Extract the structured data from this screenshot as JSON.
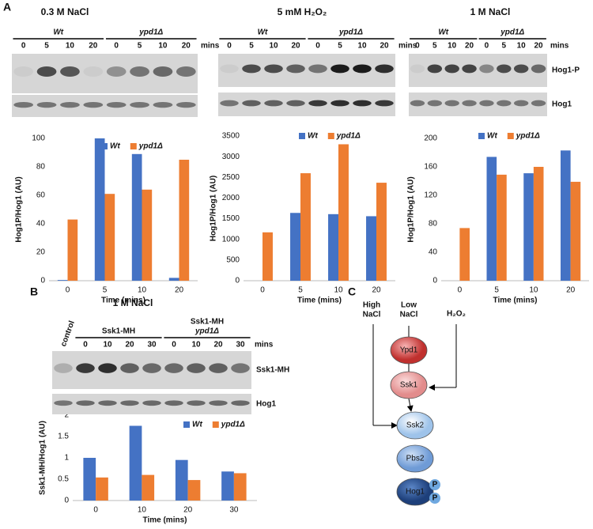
{
  "panel_labels": [
    "A",
    "B",
    "C"
  ],
  "chart_data": [
    {
      "type": "bar",
      "title": "0.3 M NaCl",
      "categories": [
        "0",
        "5",
        "10",
        "20"
      ],
      "series": [
        {
          "name": "Wt",
          "color": "#4472c4",
          "values": [
            0.5,
            100,
            89,
            2
          ]
        },
        {
          "name": "ypd1Δ",
          "color": "#ed7d31",
          "values": [
            43,
            61,
            64,
            85
          ]
        }
      ],
      "ylim": [
        0,
        100
      ],
      "yticks": [
        0,
        20,
        40,
        60,
        80,
        100
      ],
      "xlabel": "Time (mins)",
      "ylabel": "Hog1P/Hog1 (AU)"
    },
    {
      "type": "bar",
      "title": "5 mM H₂O₂",
      "categories": [
        "0",
        "5",
        "10",
        "20"
      ],
      "series": [
        {
          "name": "Wt",
          "color": "#4472c4",
          "values": [
            0,
            1640,
            1610,
            1560
          ]
        },
        {
          "name": "ypd1Δ",
          "color": "#ed7d31",
          "values": [
            1170,
            2600,
            3300,
            2370
          ]
        }
      ],
      "ylim": [
        0,
        3500
      ],
      "yticks": [
        0,
        500,
        1000,
        1500,
        2000,
        2500,
        3000,
        3500
      ],
      "xlabel": "Time (mins)",
      "ylabel": "Hog1P/Hog1 (AU)"
    },
    {
      "type": "bar",
      "title": "1 M NaCl",
      "categories": [
        "0",
        "5",
        "10",
        "20"
      ],
      "series": [
        {
          "name": "Wt",
          "color": "#4472c4",
          "values": [
            0,
            174,
            151,
            183
          ]
        },
        {
          "name": "ypd1Δ",
          "color": "#ed7d31",
          "values": [
            74,
            149,
            160,
            139
          ]
        }
      ],
      "ylim": [
        0,
        200
      ],
      "yticks": [
        0,
        40,
        80,
        120,
        160,
        200
      ],
      "xlabel": "Time (mins)",
      "ylabel": "Hog1P/Hog1 (AU)"
    },
    {
      "type": "bar",
      "title": "1 M NaCl",
      "categories": [
        "0",
        "10",
        "20",
        "30"
      ],
      "series": [
        {
          "name": "Wt",
          "color": "#4472c4",
          "values": [
            1.0,
            1.75,
            0.95,
            0.68
          ]
        },
        {
          "name": "ypd1Δ",
          "color": "#ed7d31",
          "values": [
            0.54,
            0.6,
            0.48,
            0.64
          ]
        }
      ],
      "ylim": [
        0,
        2
      ],
      "yticks": [
        0,
        0.5,
        1,
        1.5,
        2
      ],
      "xlabel": "Time (mins)",
      "ylabel": "Ssk1-MH/Hog1 (AU)"
    }
  ],
  "blots": [
    {
      "groups": [
        [
          "Wt"
        ],
        [
          "ypd1Δ"
        ]
      ],
      "times": [
        0,
        5,
        10,
        20,
        0,
        5,
        10,
        20
      ],
      "unit": "mins"
    },
    {
      "groups": [
        [
          "Wt"
        ],
        [
          "ypd1Δ"
        ]
      ],
      "times": [
        0,
        5,
        10,
        20,
        0,
        5,
        10,
        20
      ],
      "unit": "mins"
    },
    {
      "groups": [
        [
          "Wt"
        ],
        [
          "ypd1Δ"
        ]
      ],
      "times": [
        0,
        5,
        10,
        20,
        0,
        5,
        10,
        20
      ],
      "unit": "mins",
      "row_labels": [
        "Hog1-P",
        "Hog1"
      ]
    },
    {
      "control": "control",
      "groups": [
        [
          "Ssk1-MH"
        ],
        [
          "Ssk1-MH",
          "ypd1Δ"
        ]
      ],
      "times": [
        0,
        10,
        20,
        30,
        0,
        10,
        20,
        30
      ],
      "unit": "mins",
      "row_labels": [
        "Ssk1-MH",
        "Hog1"
      ]
    }
  ],
  "diagram": {
    "inputs": {
      "high": [
        "High",
        "NaCl"
      ],
      "low": [
        "Low",
        "NaCl"
      ],
      "peroxide": "H₂O₂"
    },
    "nodes": [
      "Ypd1",
      "Ssk1",
      "Ssk2",
      "Pbs2",
      "Hog1"
    ],
    "phospho": [
      "P",
      "P"
    ]
  }
}
